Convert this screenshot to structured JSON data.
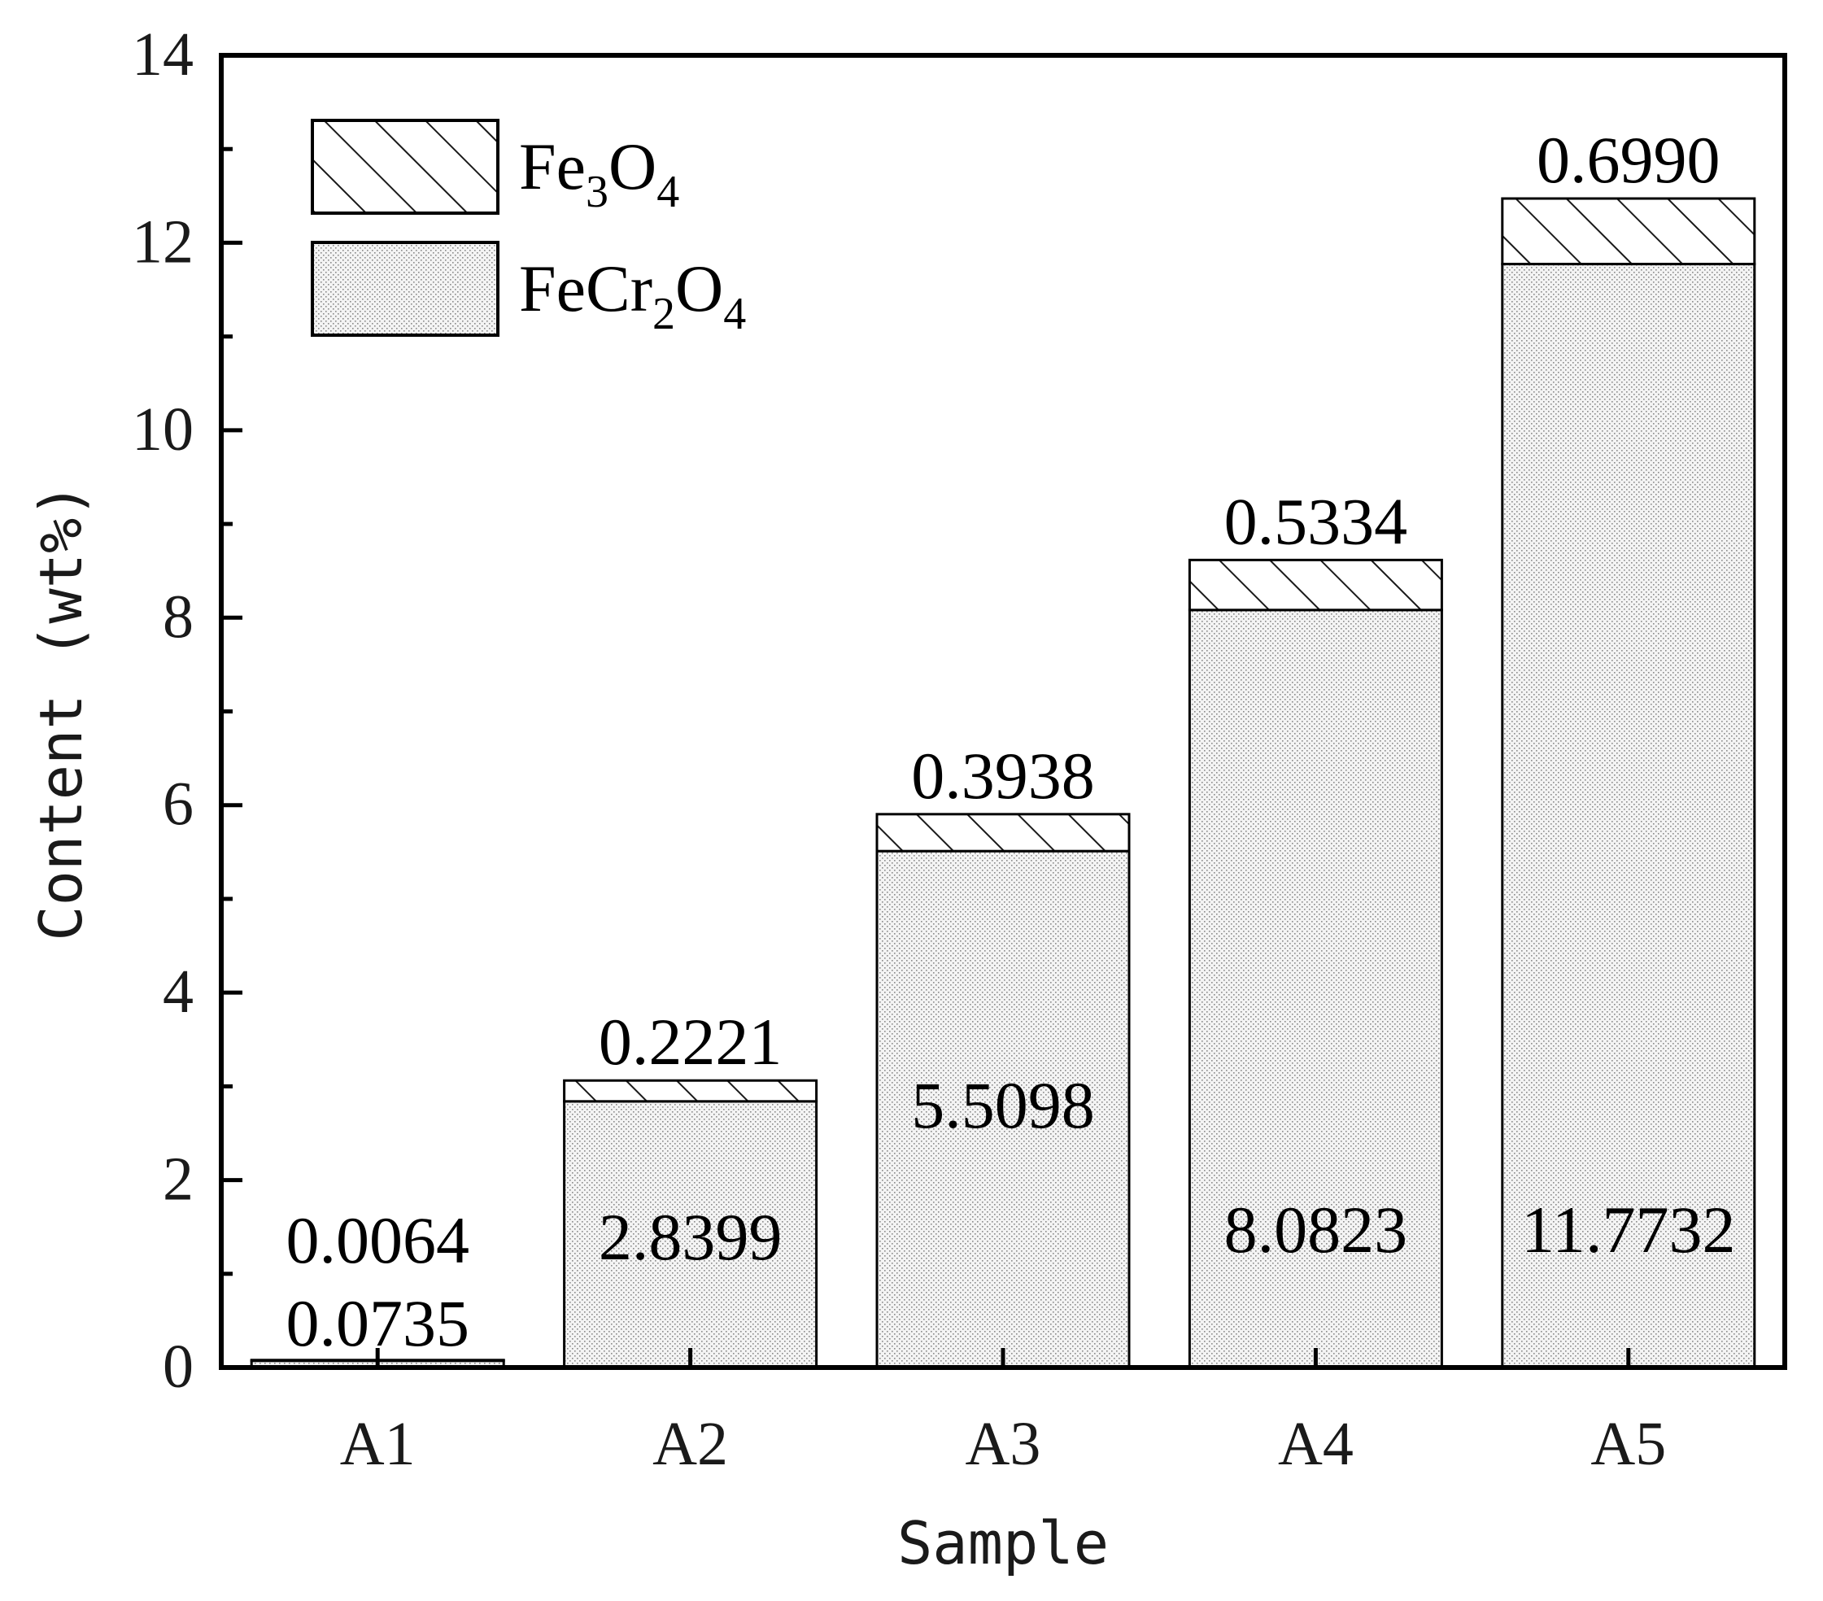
{
  "chart_data": {
    "type": "bar",
    "stacked": true,
    "title": "",
    "xlabel": "Sample",
    "ylabel": "Content (wt%)",
    "ylim": [
      0,
      14
    ],
    "yticks": [
      "0",
      "2",
      "4",
      "6",
      "8",
      "10",
      "12",
      "14"
    ],
    "categories": [
      "A1",
      "A2",
      "A3",
      "A4",
      "A5"
    ],
    "series": [
      {
        "name": "FeCr2O4",
        "formula": {
          "a": "FeCr",
          "sub1": "2",
          "b": "O",
          "sub2": "4"
        },
        "pattern": "dots",
        "values": [
          0.0735,
          2.8399,
          5.5098,
          8.0823,
          11.7732
        ],
        "labels": [
          "0.0735",
          "2.8399",
          "5.5098",
          "8.0823",
          "11.7732"
        ]
      },
      {
        "name": "Fe3O4",
        "formula": {
          "a": "Fe",
          "sub1": "3",
          "b": "O",
          "sub2": "4"
        },
        "pattern": "hatch",
        "values": [
          0.0064,
          0.2221,
          0.3938,
          0.5334,
          0.699
        ],
        "labels": [
          "0.0064",
          "0.2221",
          "0.3938",
          "0.5334",
          "0.6990"
        ]
      }
    ],
    "legend": {
      "position": "top-left",
      "order": [
        "Fe3O4",
        "FeCr2O4"
      ]
    },
    "grid": false
  }
}
